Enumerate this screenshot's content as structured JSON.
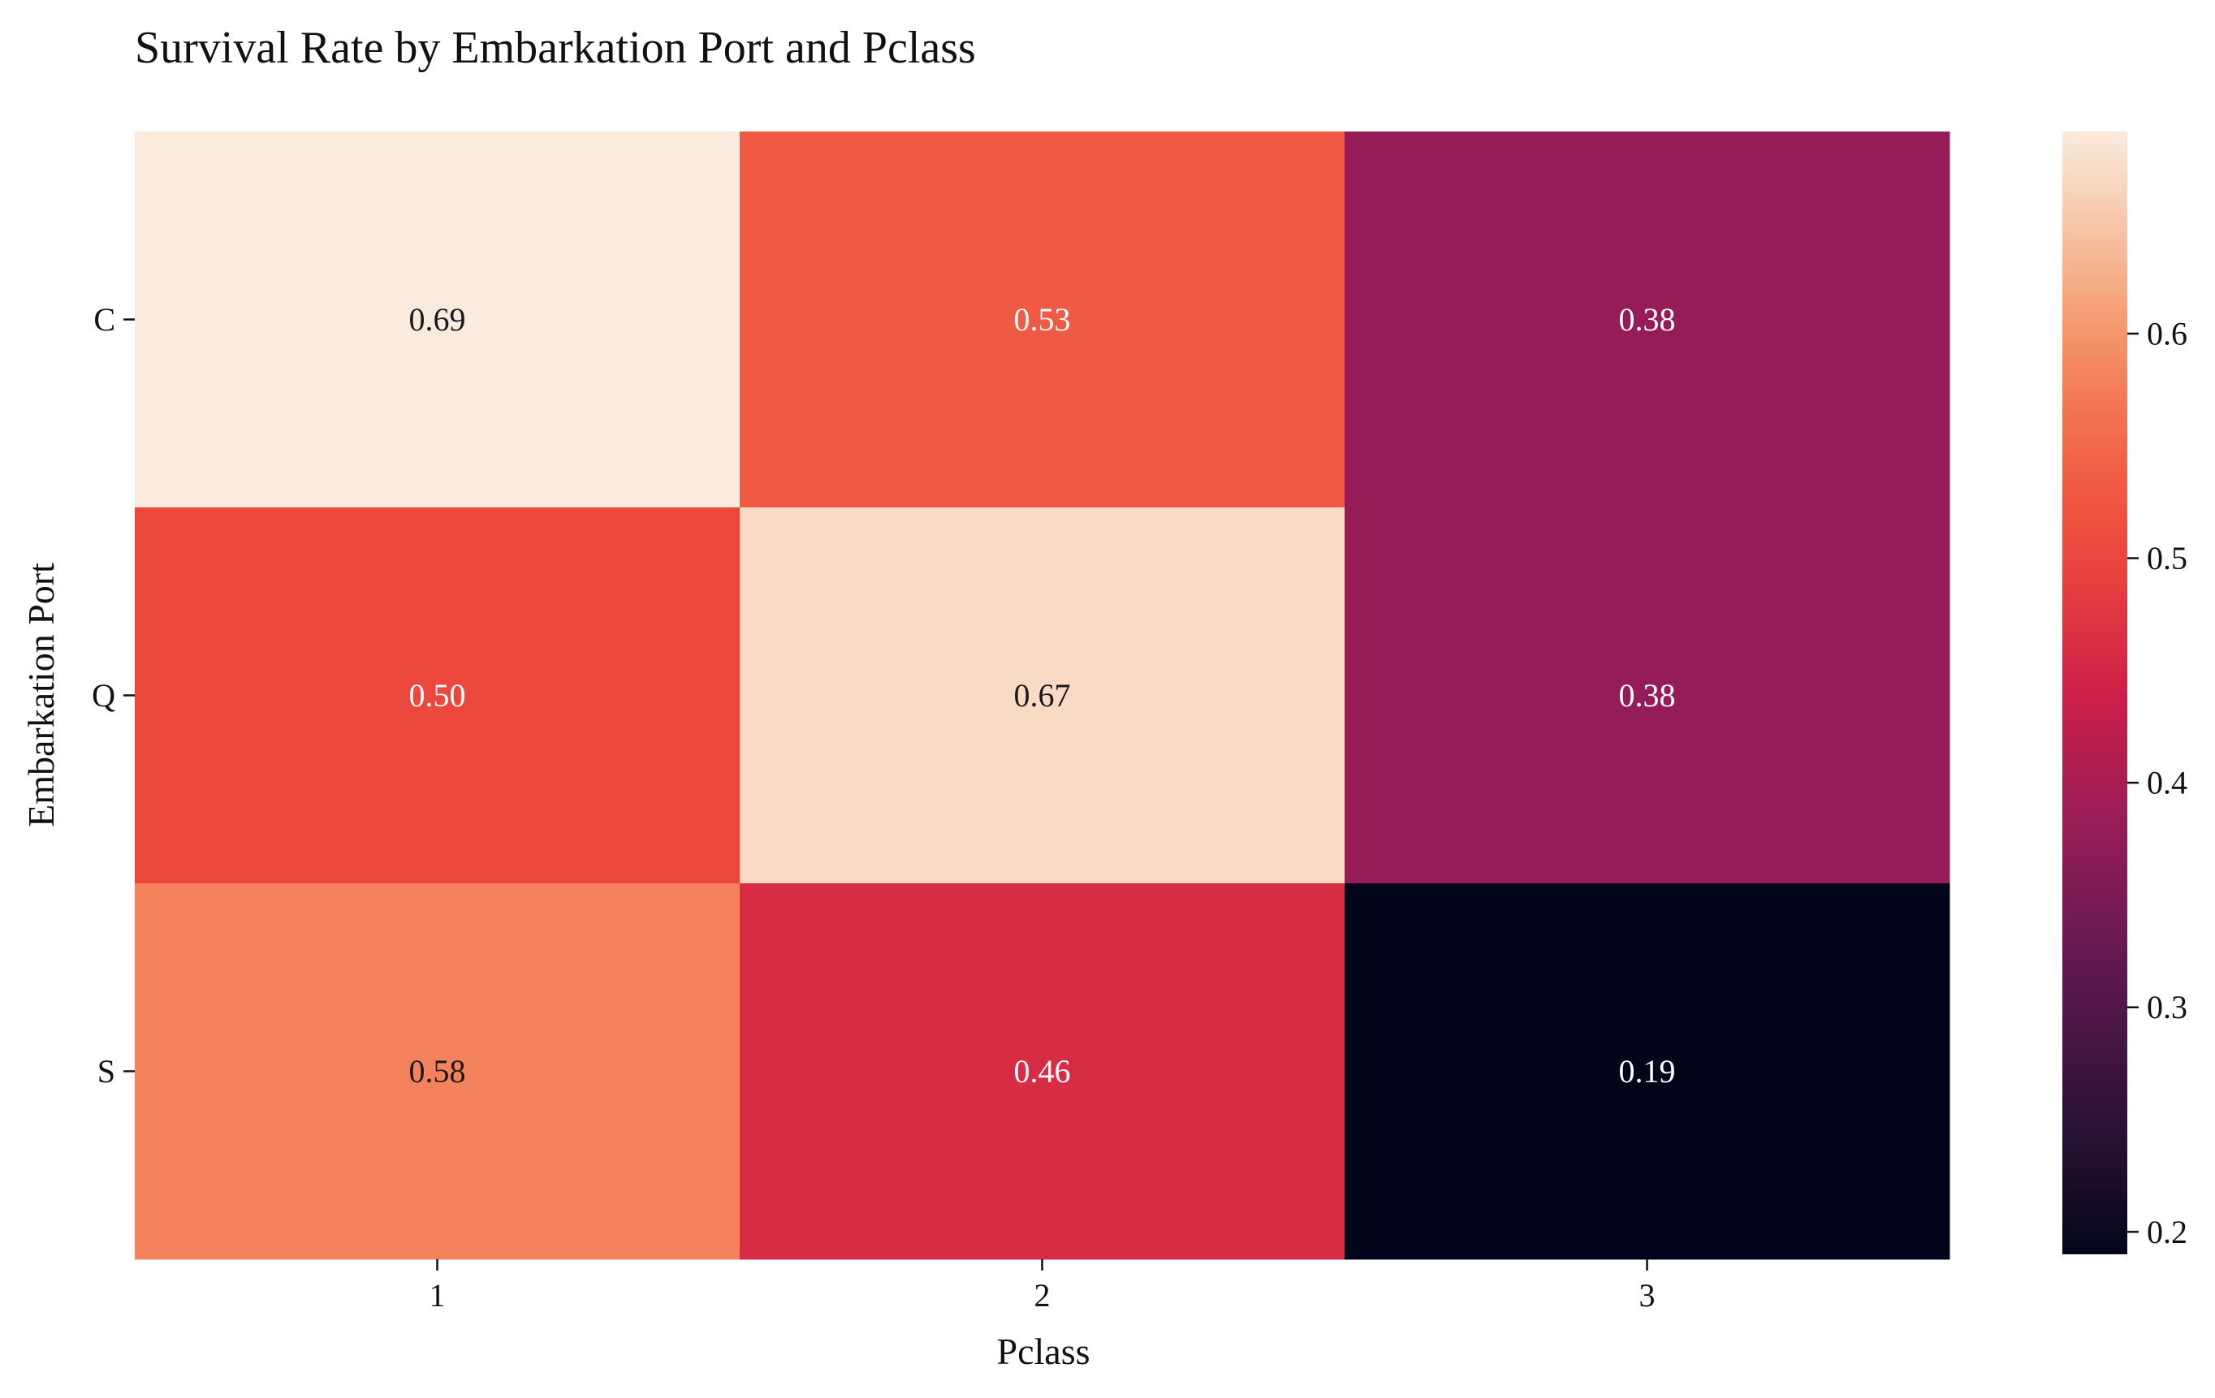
{
  "chart_data": {
    "type": "heatmap",
    "title": "Survival Rate by Embarkation Port and Pclass",
    "xlabel": "Pclass",
    "ylabel": "Embarkation Port",
    "x_categories": [
      "1",
      "2",
      "3"
    ],
    "y_categories": [
      "C",
      "Q",
      "S"
    ],
    "values": [
      [
        0.69,
        0.53,
        0.38
      ],
      [
        0.5,
        0.67,
        0.38
      ],
      [
        0.58,
        0.46,
        0.19
      ]
    ],
    "annotations": [
      [
        "0.69",
        "0.53",
        "0.38"
      ],
      [
        "0.50",
        "0.67",
        "0.38"
      ],
      [
        "0.58",
        "0.46",
        "0.19"
      ]
    ],
    "colorbar": {
      "range": [
        0.19,
        0.69
      ],
      "ticks": [
        0.2,
        0.3,
        0.4,
        0.5,
        0.6
      ],
      "tick_labels": [
        "0.2",
        "0.3",
        "0.4",
        "0.5",
        "0.6"
      ],
      "colormap": "rocket"
    }
  }
}
